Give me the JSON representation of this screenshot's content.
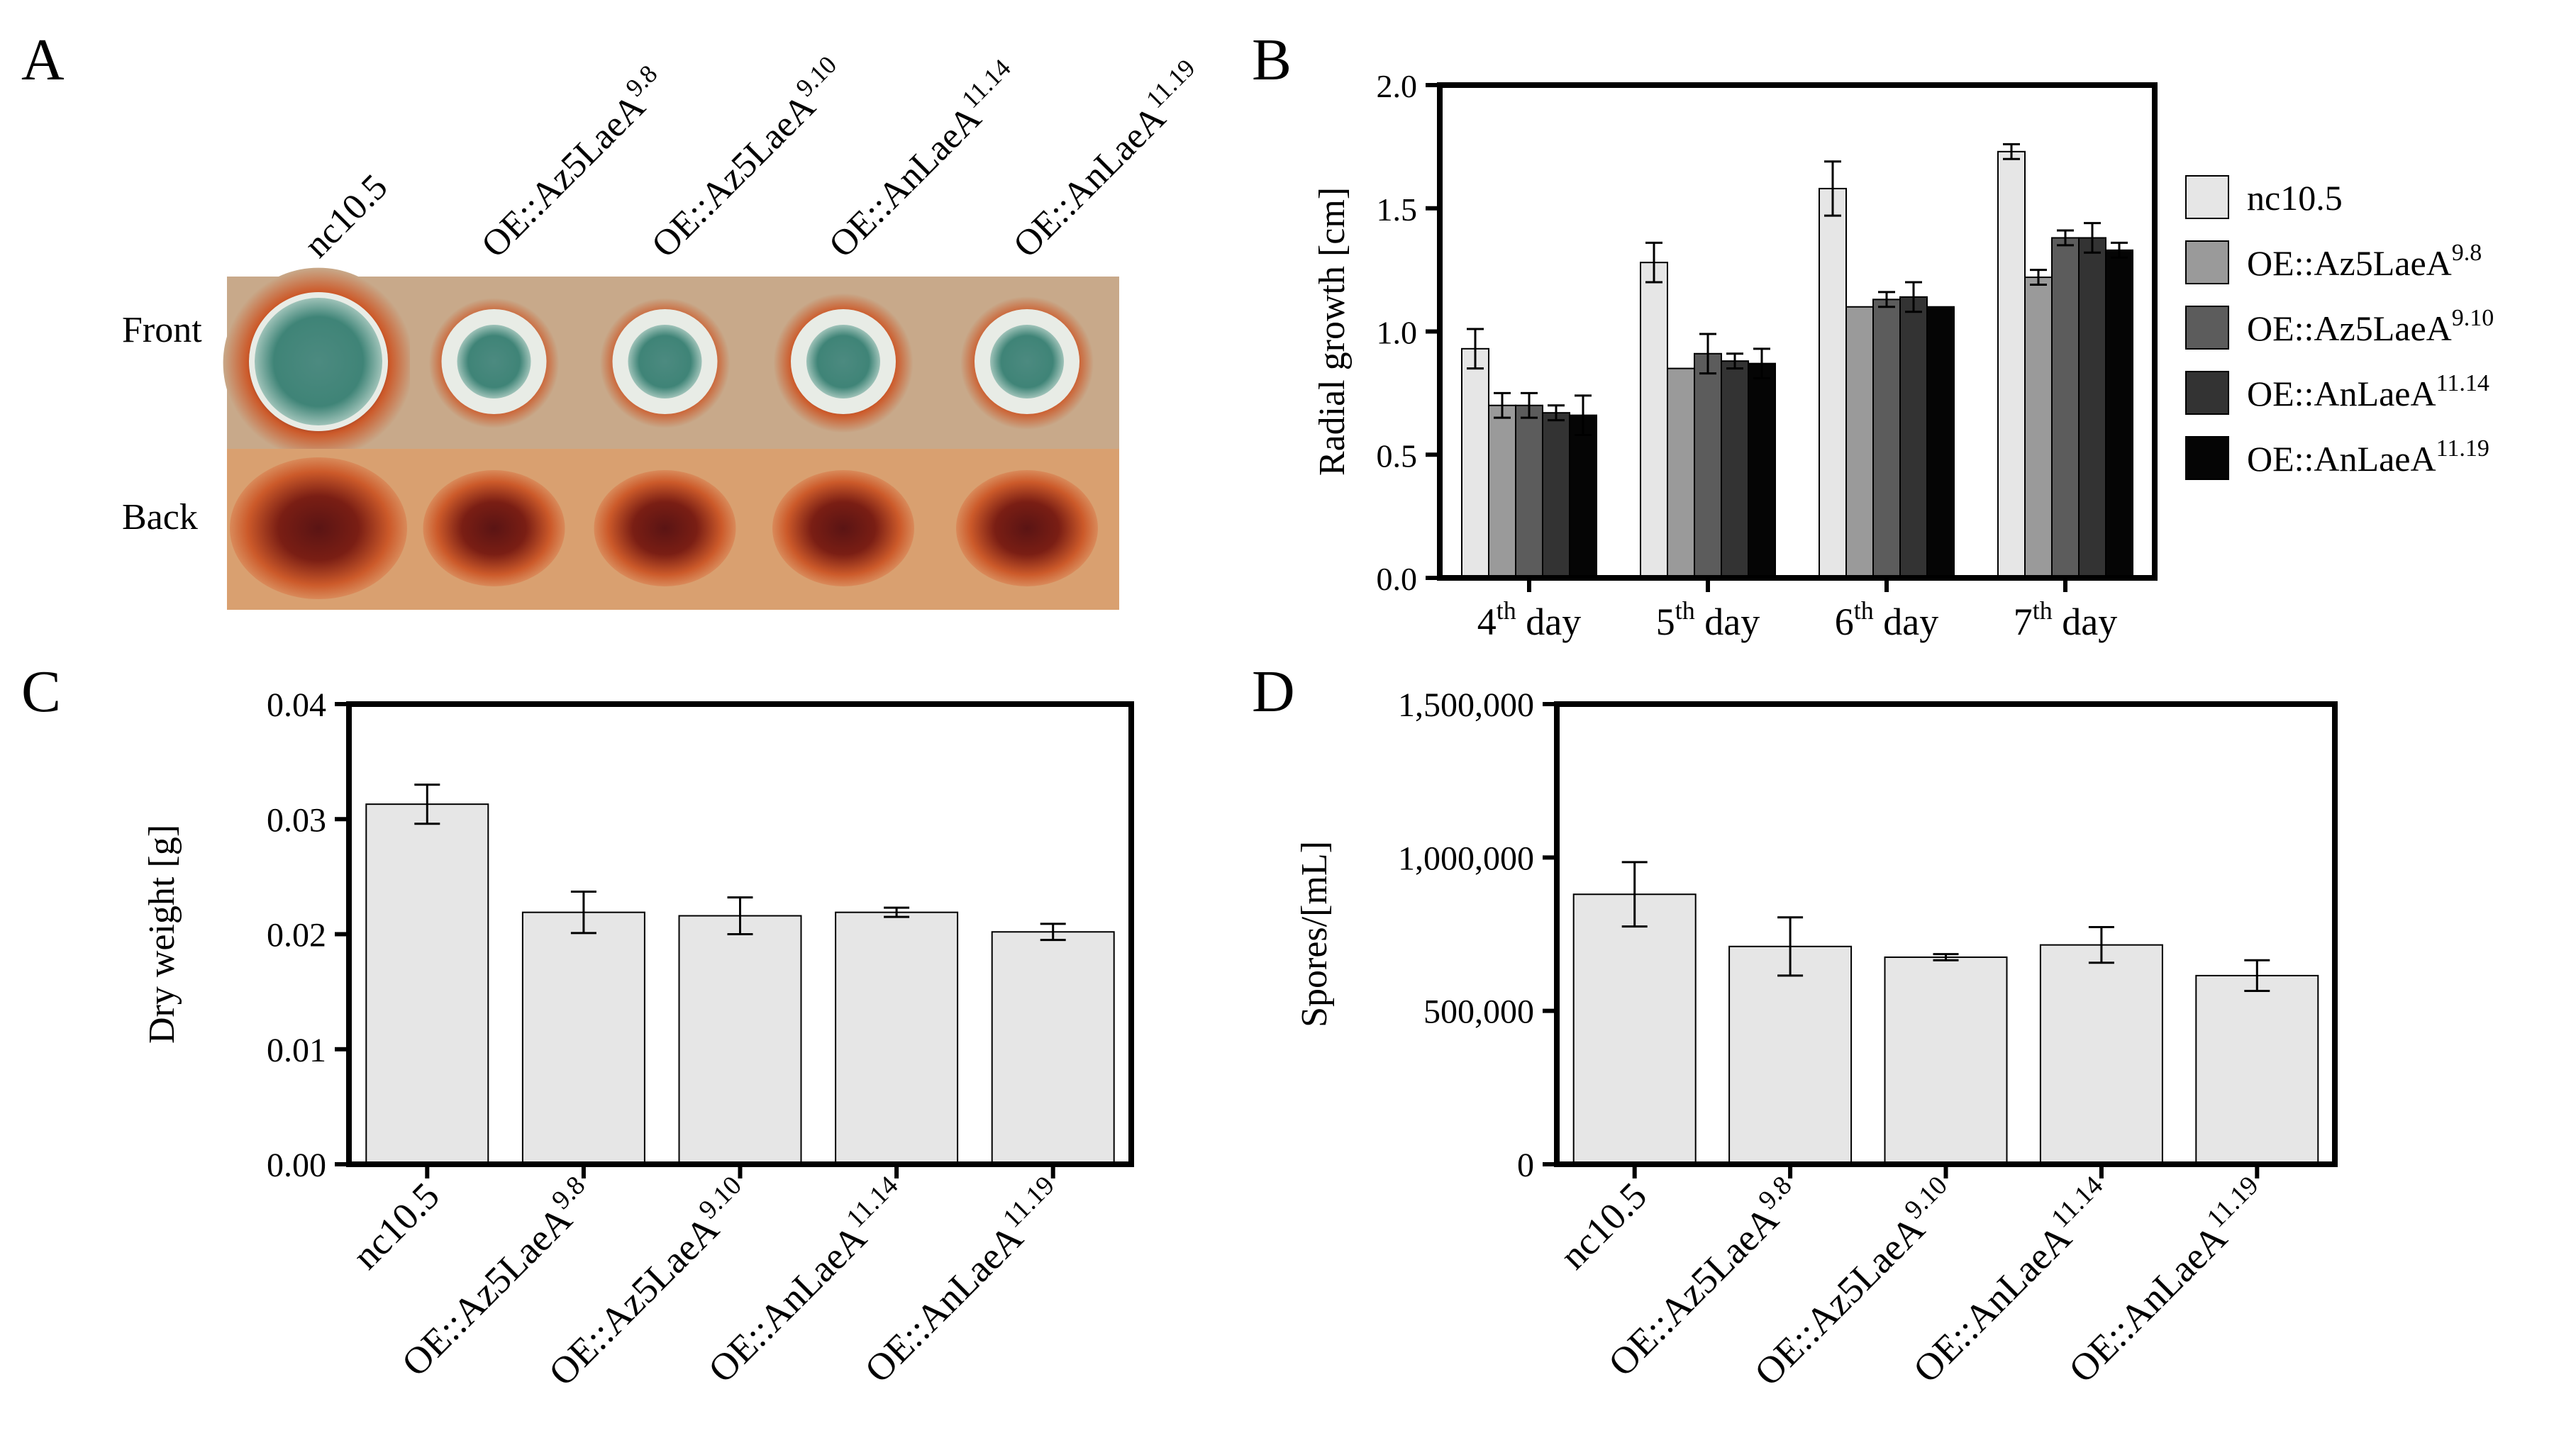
{
  "panel_letters": [
    "A",
    "B",
    "C",
    "D"
  ],
  "panel_a": {
    "row_labels": [
      "Front",
      "Back"
    ],
    "strains": [
      {
        "main": "nc10.5",
        "sup": ""
      },
      {
        "main": "OE::Az5LaeA",
        "sup": "9.8"
      },
      {
        "main": "OE::Az5LaeA",
        "sup": "9.10"
      },
      {
        "main": "OE::AnLaeA",
        "sup": "11.14"
      },
      {
        "main": "OE::AnLaeA",
        "sup": "11.19"
      }
    ],
    "colors": {
      "agar": "#c8a98a",
      "pigment_outer": "#cc5a2a",
      "pigment_dark": "#5a1414",
      "colony_green": "#3f8477",
      "colony_white": "#e8ece6"
    }
  },
  "chart_data": [
    {
      "id": "B",
      "type": "bar",
      "title": "",
      "ylabel": "Radial growth [cm]",
      "xlabel": "",
      "ylim": [
        0,
        2.0
      ],
      "yticks": [
        "0.0",
        "0.5",
        "1.0",
        "1.5",
        "2.0"
      ],
      "categories": [
        {
          "pre": "4",
          "sup": "th",
          "post": " day"
        },
        {
          "pre": "5",
          "sup": "th",
          "post": " day"
        },
        {
          "pre": "6",
          "sup": "th",
          "post": " day"
        },
        {
          "pre": "7",
          "sup": "th",
          "post": " day"
        }
      ],
      "series": [
        {
          "name": "nc10.5",
          "sup": "",
          "color": "#e6e6e6",
          "values": [
            0.93,
            1.28,
            1.58,
            1.73
          ],
          "errors": [
            0.08,
            0.08,
            0.11,
            0.03
          ]
        },
        {
          "name": "OE::Az5LaeA",
          "sup": "9.8",
          "color": "#9a9a9a",
          "values": [
            0.7,
            0.85,
            1.1,
            1.22
          ],
          "errors": [
            0.05,
            0.0,
            0.0,
            0.03
          ]
        },
        {
          "name": "OE::Az5LaeA",
          "sup": "9.10",
          "color": "#5c5c5c",
          "values": [
            0.7,
            0.91,
            1.13,
            1.38
          ],
          "errors": [
            0.05,
            0.08,
            0.03,
            0.03
          ]
        },
        {
          "name": "OE::AnLaeA",
          "sup": "11.14",
          "color": "#333333",
          "values": [
            0.67,
            0.88,
            1.14,
            1.38
          ],
          "errors": [
            0.03,
            0.03,
            0.06,
            0.06
          ]
        },
        {
          "name": "OE::AnLaeA",
          "sup": "11.19",
          "color": "#050505",
          "values": [
            0.66,
            0.87,
            1.1,
            1.33
          ],
          "errors": [
            0.08,
            0.06,
            0.0,
            0.03
          ]
        }
      ],
      "legend_position": "right"
    },
    {
      "id": "C",
      "type": "bar",
      "title": "",
      "ylabel": "Dry weight [g]",
      "xlabel": "",
      "ylim": [
        0,
        0.04
      ],
      "yticks": [
        "0.00",
        "0.01",
        "0.02",
        "0.03",
        "0.04"
      ],
      "categories": [
        {
          "main": "nc10.5",
          "sup": ""
        },
        {
          "main": "OE::Az5LaeA",
          "sup": "9.8"
        },
        {
          "main": "OE::Az5LaeA",
          "sup": "9.10"
        },
        {
          "main": "OE::AnLaeA",
          "sup": "11.14"
        },
        {
          "main": "OE::AnLaeA",
          "sup": "11.19"
        }
      ],
      "values": [
        0.0313,
        0.0219,
        0.0216,
        0.0219,
        0.0202
      ],
      "errors": [
        0.0017,
        0.0018,
        0.0016,
        0.0004,
        0.0007
      ],
      "bar_color": "#e6e6e6"
    },
    {
      "id": "D",
      "type": "bar",
      "title": "",
      "ylabel": "Spores/[mL]",
      "xlabel": "",
      "ylim": [
        0,
        1500000
      ],
      "yticks": [
        "0",
        "500,000",
        "1,000,000",
        "1,500,000"
      ],
      "categories": [
        {
          "main": "nc10.5",
          "sup": ""
        },
        {
          "main": "OE::Az5LaeA",
          "sup": "9.8"
        },
        {
          "main": "OE::Az5LaeA",
          "sup": "9.10"
        },
        {
          "main": "OE::AnLaeA",
          "sup": "11.14"
        },
        {
          "main": "OE::AnLaeA",
          "sup": "11.19"
        }
      ],
      "values": [
        880000,
        710000,
        675000,
        715000,
        615000
      ],
      "errors": [
        105000,
        95000,
        10000,
        58000,
        50000
      ],
      "bar_color": "#e6e6e6"
    }
  ]
}
